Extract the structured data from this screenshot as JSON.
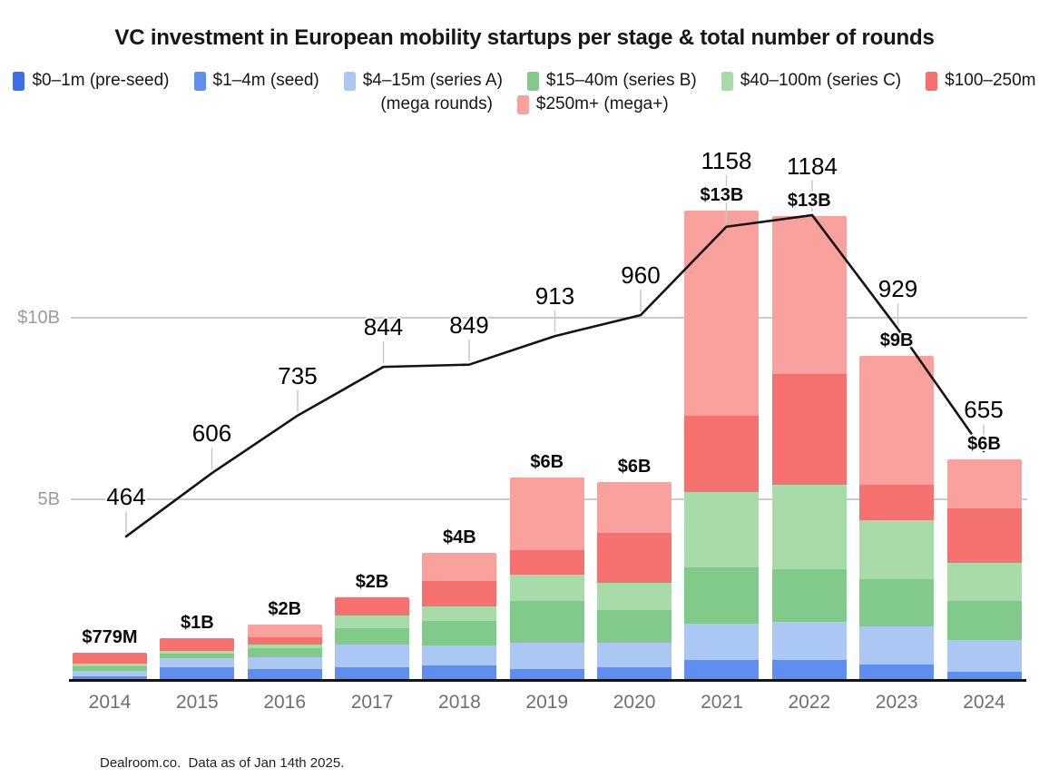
{
  "title": "VC investment in European mobility startups per stage & total number of rounds",
  "footer": "Dealroom.co.  Data as of Jan 14th 2025.",
  "palette": {
    "pre_seed": "#3f6ee6",
    "seed": "#5e8ff0",
    "series_a": "#abc8f4",
    "series_b": "#82ca8a",
    "series_c": "#a7dba9",
    "mega": "#f4716e",
    "mega_plus": "#f9a19c",
    "line": "#141414",
    "grid": "#cbcbcb",
    "leader": "#c9c9c9",
    "y_label": "#9b9b9b",
    "x_label": "#6f6f6f"
  },
  "legend": {
    "rows": [
      [
        {
          "swatch": "pre_seed",
          "label": "$0–1m (pre-seed)"
        },
        {
          "swatch": "seed",
          "label": "$1–4m (seed)"
        },
        {
          "swatch": "series_a",
          "label": "$4–15m (series A)"
        },
        {
          "swatch": "series_b",
          "label": "$15–40m (series B)"
        },
        {
          "swatch": "series_c",
          "label": "$40–100m (series C)"
        },
        {
          "swatch": "mega",
          "label": "$100–250m"
        }
      ],
      [
        {
          "swatch": null,
          "label": "(mega rounds)"
        },
        {
          "swatch": "mega_plus",
          "label": "$250m+ (mega+)"
        }
      ]
    ]
  },
  "chart_data": {
    "type": "bar",
    "subtype": "stacked-bar-with-line",
    "categories": [
      2014,
      2015,
      2016,
      2017,
      2018,
      2019,
      2020,
      2021,
      2022,
      2023,
      2024
    ],
    "value_unit": "billion USD",
    "series": [
      {
        "name": "$0–1m (pre-seed)",
        "color_key": "pre_seed",
        "values": [
          0.03,
          0.05,
          0.05,
          0.05,
          0.05,
          0.05,
          0.05,
          0.05,
          0.05,
          0.05,
          0.05
        ]
      },
      {
        "name": "$1–4m (seed)",
        "color_key": "seed",
        "values": [
          0.1,
          0.33,
          0.28,
          0.33,
          0.38,
          0.28,
          0.33,
          0.53,
          0.53,
          0.4,
          0.2
        ]
      },
      {
        "name": "$4–15m (series A)",
        "color_key": "series_a",
        "values": [
          0.15,
          0.25,
          0.33,
          0.63,
          0.55,
          0.73,
          0.68,
          1.0,
          1.05,
          1.05,
          0.88
        ]
      },
      {
        "name": "$15–40m (series B)",
        "color_key": "series_b",
        "values": [
          0.12,
          0.12,
          0.25,
          0.45,
          0.68,
          1.13,
          0.88,
          1.55,
          1.45,
          1.3,
          1.08
        ]
      },
      {
        "name": "$40–100m (series C)",
        "color_key": "series_c",
        "values": [
          0.08,
          0.08,
          0.1,
          0.35,
          0.38,
          0.73,
          0.75,
          2.08,
          2.33,
          1.63,
          1.05
        ]
      },
      {
        "name": "$100–250m (mega rounds)",
        "color_key": "mega",
        "values": [
          0.3,
          0.35,
          0.2,
          0.48,
          0.7,
          0.68,
          1.38,
          2.1,
          3.05,
          0.98,
          1.5
        ]
      },
      {
        "name": "$250m+ (mega+)",
        "color_key": "mega_plus",
        "values": [
          0.0,
          0.0,
          0.33,
          0.0,
          0.78,
          2.0,
          1.4,
          5.65,
          4.35,
          3.55,
          1.33
        ]
      }
    ],
    "bar_total_labels": [
      "$779M",
      "$1B",
      "$2B",
      "$2B",
      "$4B",
      "$6B",
      "$6B",
      "$13B",
      "$13B",
      "$9B",
      "$6B"
    ],
    "line": {
      "name": "Total number of rounds",
      "values": [
        464,
        606,
        735,
        844,
        849,
        913,
        960,
        1158,
        1184,
        929,
        655
      ]
    },
    "y_axis": {
      "ticks": [
        {
          "label": "$10B",
          "value": 10
        },
        {
          "label": "5B",
          "value": 5
        }
      ],
      "range_billion": [
        0,
        13.5
      ],
      "grid": true
    },
    "legend_position": "top"
  }
}
